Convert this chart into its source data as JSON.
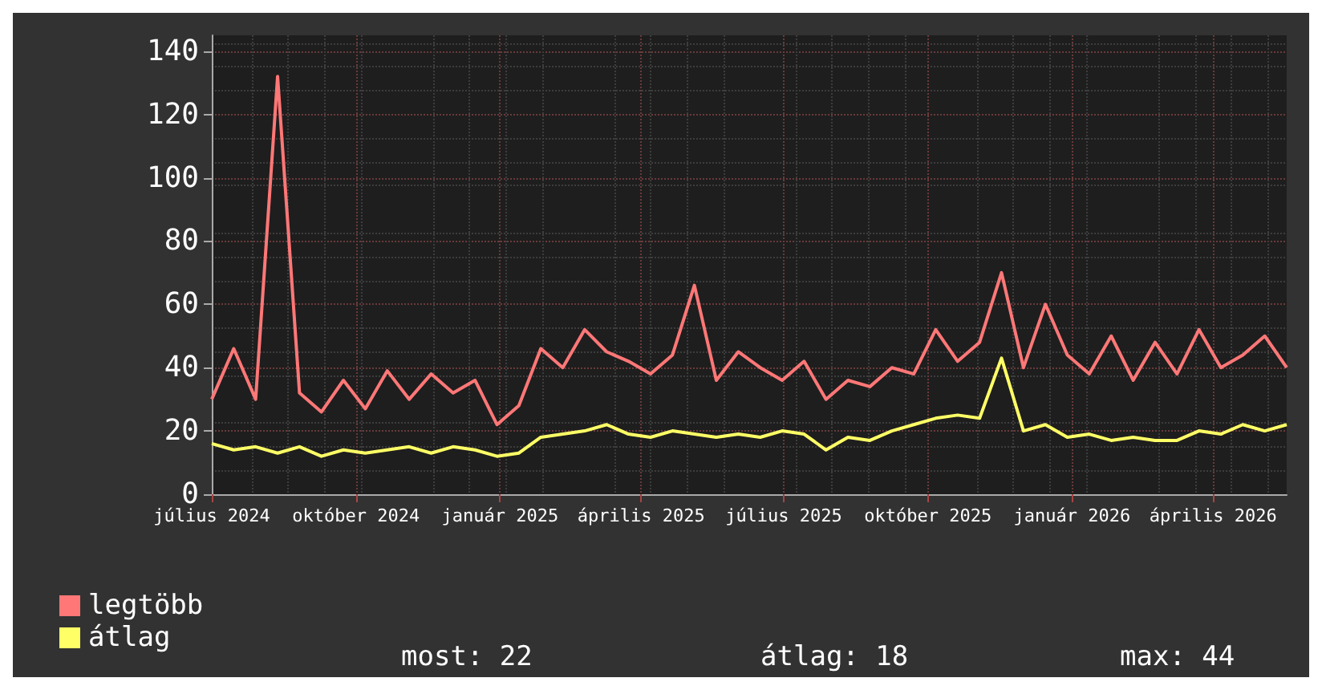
{
  "chart_data": {
    "type": "line",
    "x": [
      "2024-07-01",
      "2024-07-15",
      "2024-07-29",
      "2024-08-12",
      "2024-08-26",
      "2024-09-09",
      "2024-09-23",
      "2024-10-07",
      "2024-10-21",
      "2024-11-04",
      "2024-11-18",
      "2024-12-02",
      "2024-12-16",
      "2024-12-30",
      "2025-01-13",
      "2025-01-27",
      "2025-02-10",
      "2025-02-24",
      "2025-03-10",
      "2025-03-24",
      "2025-04-07",
      "2025-04-21",
      "2025-05-05",
      "2025-05-19",
      "2025-06-02",
      "2025-06-16",
      "2025-06-30",
      "2025-07-14",
      "2025-07-28",
      "2025-08-11",
      "2025-08-25",
      "2025-09-08",
      "2025-09-22",
      "2025-10-06",
      "2025-10-20",
      "2025-11-03",
      "2025-11-17",
      "2025-12-01",
      "2025-12-15",
      "2025-12-29",
      "2026-01-12",
      "2026-01-26",
      "2026-02-09",
      "2026-02-23",
      "2026-03-09",
      "2026-03-23",
      "2026-04-06",
      "2026-04-20",
      "2026-05-04",
      "2026-05-18"
    ],
    "series": [
      {
        "name": "legtöbb",
        "color": "#ff7777",
        "values": [
          30,
          46,
          30,
          132,
          32,
          26,
          36,
          27,
          39,
          30,
          38,
          32,
          36,
          22,
          28,
          46,
          40,
          52,
          45,
          42,
          38,
          44,
          66,
          36,
          45,
          40,
          36,
          42,
          30,
          36,
          34,
          40,
          38,
          52,
          42,
          48,
          70,
          40,
          60,
          44,
          38,
          50,
          36,
          48,
          38,
          52,
          40,
          44,
          50,
          40
        ]
      },
      {
        "name": "átlag",
        "color": "#ffff66",
        "values": [
          16,
          14,
          15,
          13,
          15,
          12,
          14,
          13,
          14,
          15,
          13,
          15,
          14,
          12,
          13,
          18,
          19,
          20,
          22,
          19,
          18,
          20,
          19,
          18,
          19,
          18,
          20,
          19,
          14,
          18,
          17,
          20,
          22,
          24,
          25,
          24,
          43,
          20,
          22,
          18,
          19,
          17,
          18,
          17,
          17,
          20,
          19,
          22,
          20,
          22
        ]
      }
    ],
    "xlim": [
      "2024-07-01",
      "2026-05-18"
    ],
    "xticks": [
      {
        "value": "2024-07-01",
        "label": "július 2024"
      },
      {
        "value": "2024-10-01",
        "label": "október 2024"
      },
      {
        "value": "2025-01-01",
        "label": "január 2025"
      },
      {
        "value": "2025-04-01",
        "label": "április 2025"
      },
      {
        "value": "2025-07-01",
        "label": "július 2025"
      },
      {
        "value": "2025-10-01",
        "label": "október 2025"
      },
      {
        "value": "2026-01-01",
        "label": "január 2026"
      },
      {
        "value": "2026-04-01",
        "label": "április 2026"
      }
    ],
    "ylim": [
      0,
      145
    ],
    "yticks": [
      0,
      20,
      40,
      60,
      80,
      100,
      120,
      140
    ],
    "grid": true,
    "legend": "bottom left",
    "marker": "none",
    "line_style": "solid",
    "annotations": [
      "most: 22",
      "átlag: 18",
      "max: 44"
    ]
  }
}
